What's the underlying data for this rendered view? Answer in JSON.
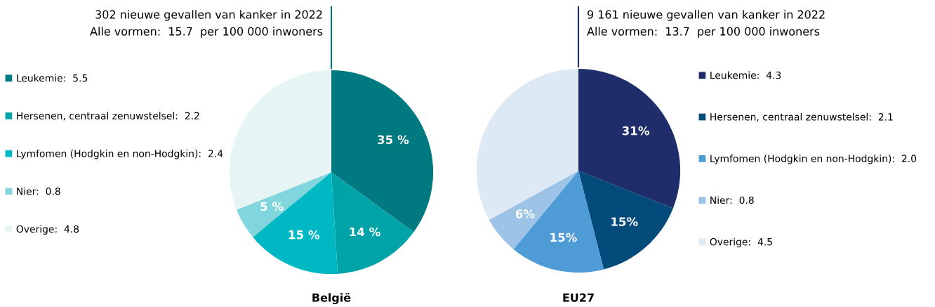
{
  "chart_data": [
    {
      "type": "pie",
      "title": "302 nieuwe gevallen van kanker in 2022",
      "subtitle": "Alle vormen:  15.7  per 100 000 inwoners",
      "xlabel": "België",
      "legend": "left",
      "categories": [
        "Leukemie:  5.5",
        "Hersenen, centraal zenuwstelsel:  2.2",
        "Lymfomen (Hodgkin en non-Hodgkin):  2.4",
        "Nier:  0.8",
        "Overige:  4.8"
      ],
      "values": [
        35,
        14,
        15,
        5,
        31
      ],
      "colors": [
        "#007a80",
        "#00a3a8",
        "#00b8c4",
        "#80d6dc",
        "#e6f4f4"
      ],
      "value_labels": [
        "35 %",
        "14 %",
        "15 %",
        "5 %",
        null
      ]
    },
    {
      "type": "pie",
      "title": "9 161 nieuwe gevallen van kanker in 2022",
      "subtitle": "Alle vormen:  13.7  per 100 000 inwoners",
      "xlabel": "EU27",
      "legend": "right",
      "categories": [
        "Leukemie:  4.3",
        "Hersenen, centraal zenuwstelsel:  2.1",
        "Lymfomen (Hodgkin en non-Hodgkin):  2.0",
        "Nier:  0.8",
        "Overige:  4.5"
      ],
      "values": [
        31,
        15,
        15,
        6,
        33
      ],
      "colors": [
        "#1f2d6b",
        "#034b7a",
        "#4f9bd6",
        "#9dc3e6",
        "#dde9f5"
      ],
      "value_labels": [
        "31%",
        "15%",
        "15%",
        "6%",
        null
      ]
    }
  ]
}
